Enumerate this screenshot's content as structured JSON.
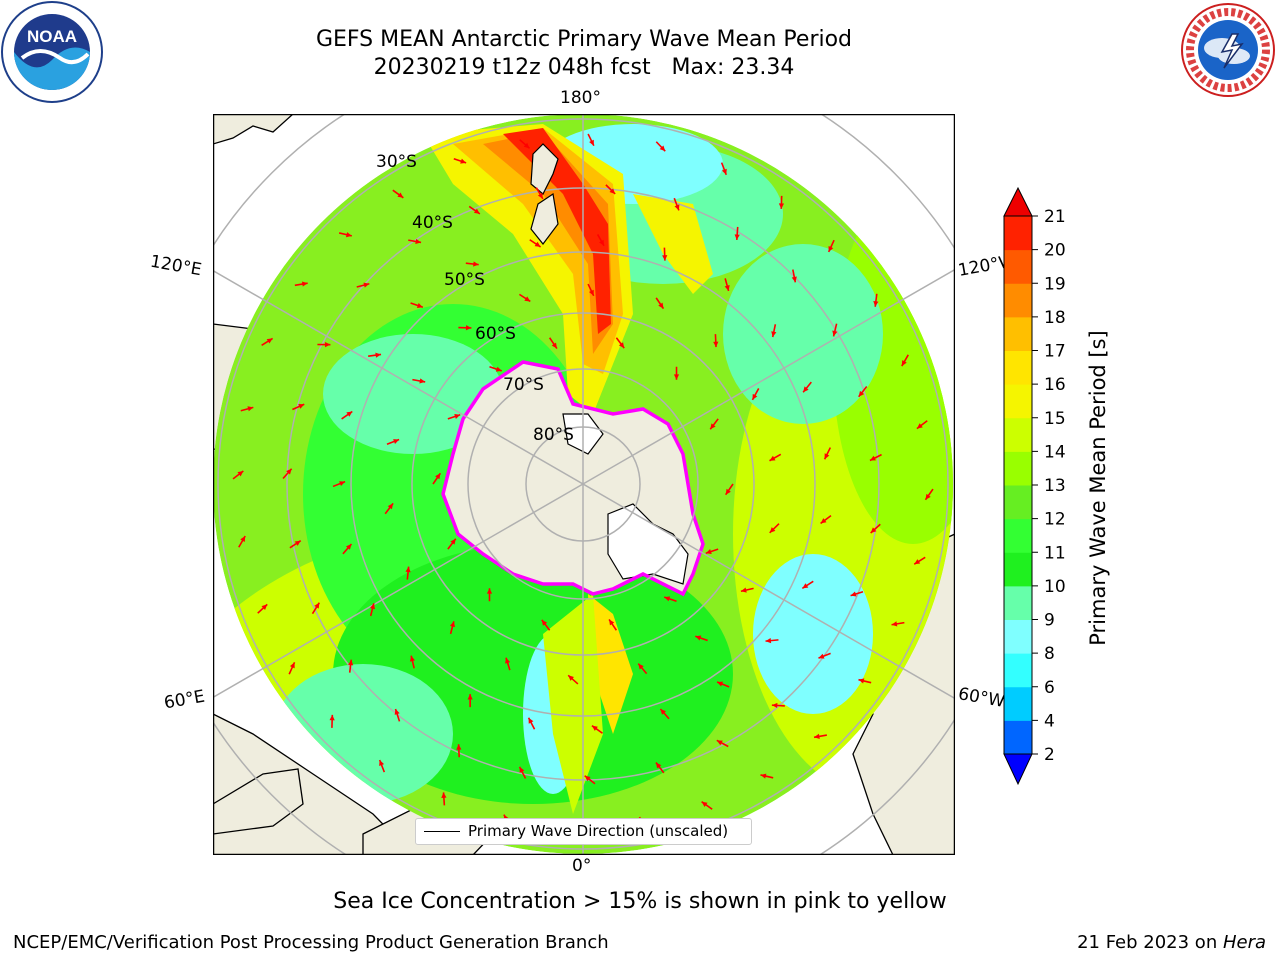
{
  "title": {
    "line1": "GEFS MEAN Antarctic Primary Wave Mean Period",
    "line2": "20230219 t12z 048h fcst   Max: 23.34"
  },
  "logos": {
    "left": "noaa-logo",
    "right": "nws-logo"
  },
  "map": {
    "projection": "south-polar-stereographic",
    "lon_labels": {
      "top": "180°",
      "bottom": "0°",
      "upper_left": "120°E",
      "lower_left": "60°E",
      "upper_right": "120°W",
      "lower_right": "60°W"
    },
    "lat_labels": [
      "30°S",
      "40°S",
      "50°S",
      "60°S",
      "70°S",
      "80°S"
    ],
    "legend": "Primary Wave Direction (unscaled)",
    "colors": {
      "land": "#efedde",
      "ice": "#ff00ff",
      "arrow": "#ff0000",
      "grid": "#b0b0b0"
    }
  },
  "colorbar": {
    "label": "Primary Wave Mean Period [s]",
    "ticks": [
      "2",
      "4",
      "6",
      "8",
      "9",
      "10",
      "11",
      "12",
      "13",
      "14",
      "15",
      "16",
      "17",
      "18",
      "19",
      "20",
      "21"
    ],
    "colors": [
      "#0066ff",
      "#00ccff",
      "#33ffff",
      "#7fffff",
      "#66ffaa",
      "#1ff01f",
      "#33ff33",
      "#66ee22",
      "#99ff00",
      "#ccff00",
      "#f5f500",
      "#ffe500",
      "#ffbf00",
      "#ff8c00",
      "#ff5a00",
      "#ff2200"
    ],
    "under_color": "#0000ff",
    "over_color": "#ee0000"
  },
  "note": "Sea Ice Concentration > 15% is shown in pink to yellow",
  "footer": {
    "left": "NCEP/EMC/Verification Post Processing Product Generation Branch",
    "right_date": "21 Feb 2023 on ",
    "right_host": "Hera"
  }
}
